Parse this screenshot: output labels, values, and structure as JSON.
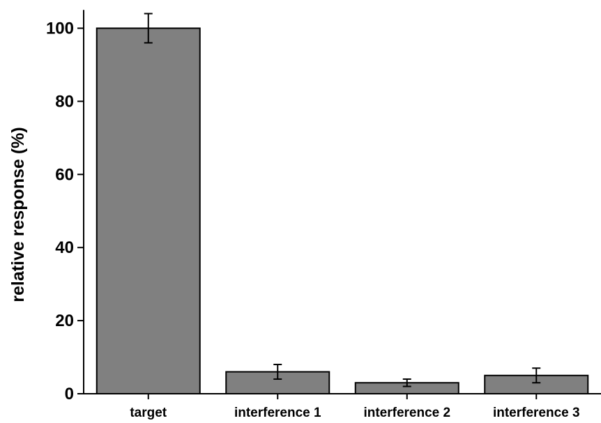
{
  "chart_data": {
    "type": "bar",
    "categories": [
      "target",
      "interference 1",
      "interference 2",
      "interference 3"
    ],
    "values": [
      100,
      6,
      3,
      5
    ],
    "errors": [
      4,
      2,
      1,
      2
    ],
    "title": "",
    "xlabel": "",
    "ylabel": "relative response (%)",
    "ylim": [
      0,
      105
    ],
    "yticks": [
      0,
      20,
      40,
      60,
      80,
      100
    ],
    "grid": false,
    "legend": "none",
    "bar_color": "#808080",
    "edge_color": "#000000"
  }
}
